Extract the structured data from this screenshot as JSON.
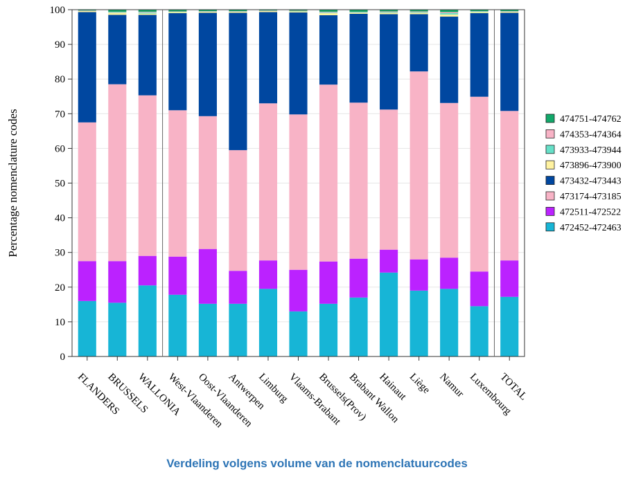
{
  "chart_data": {
    "type": "bar",
    "stacked": true,
    "ylabel": "Percentage nomenclature codes",
    "ylim": [
      0,
      100
    ],
    "yticks": [
      0,
      10,
      20,
      30,
      40,
      50,
      60,
      70,
      80,
      90,
      100
    ],
    "categories": [
      "FLANDERS",
      "BRUSSELS",
      "WALLONIA",
      "West-Vlaanderen",
      "Oost-Vlaanderen",
      "Antwerpen",
      "Limburg",
      "Vlaams-Brabant",
      "Brussels(Prov)",
      "Brabant Wallon",
      "Hainaut",
      "Liège",
      "Namur",
      "Luxembourg",
      "TOTAL"
    ],
    "group_separators_after": [
      2,
      13
    ],
    "legend_position": "right",
    "series": [
      {
        "name": "472452-472463",
        "color": "#17b5d6",
        "values": [
          16.0,
          15.5,
          20.5,
          17.8,
          15.2,
          15.2,
          19.5,
          13.0,
          15.2,
          17.0,
          24.2,
          19.0,
          19.5,
          14.5,
          17.2
        ]
      },
      {
        "name": "472511-472522",
        "color": "#bb22ff",
        "values": [
          11.5,
          12.0,
          8.5,
          11.0,
          15.8,
          9.5,
          8.2,
          12.0,
          12.2,
          11.2,
          6.6,
          9.0,
          9.0,
          10.0,
          10.5
        ]
      },
      {
        "name": "473174-473185",
        "color": "#f8b3c6",
        "values": [
          40.0,
          51.0,
          46.3,
          42.2,
          38.3,
          34.8,
          45.3,
          44.8,
          51.0,
          45.0,
          40.4,
          54.2,
          44.6,
          50.4,
          43.1
        ]
      },
      {
        "name": "473432-473443",
        "color": "#0047a0",
        "values": [
          31.8,
          20.0,
          23.2,
          28.0,
          29.8,
          39.6,
          26.3,
          29.4,
          20.0,
          25.6,
          27.5,
          16.5,
          24.9,
          24.1,
          28.3
        ]
      },
      {
        "name": "473896-473900",
        "color": "#fff2a0",
        "values": [
          0.3,
          0.6,
          0.4,
          0.3,
          0.3,
          0.3,
          0.3,
          0.3,
          0.6,
          0.3,
          0.4,
          0.4,
          0.6,
          0.3,
          0.3
        ]
      },
      {
        "name": "473933-473944",
        "color": "#66e0c8",
        "values": [
          0.1,
          0.2,
          0.3,
          0.1,
          0.1,
          0.1,
          0.1,
          0.1,
          0.2,
          0.2,
          0.2,
          0.2,
          0.4,
          0.2,
          0.1
        ]
      },
      {
        "name": "474353-474364",
        "color": "#f8b3c6",
        "values": [
          0.1,
          0.1,
          0.2,
          0.1,
          0.1,
          0.1,
          0.1,
          0.1,
          0.2,
          0.1,
          0.2,
          0.2,
          0.3,
          0.1,
          0.1
        ]
      },
      {
        "name": "474751-474762",
        "color": "#12a86a",
        "values": [
          0.2,
          0.6,
          0.6,
          0.5,
          0.4,
          0.4,
          0.2,
          0.3,
          0.6,
          0.6,
          0.5,
          0.5,
          0.7,
          0.4,
          0.4
        ]
      }
    ]
  },
  "caption": "Verdeling volgens volume van de nomenclatuurcodes"
}
